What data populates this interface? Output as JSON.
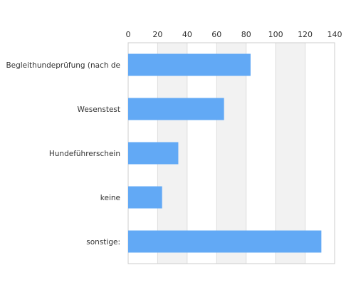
{
  "chart_data": {
    "type": "bar",
    "orientation": "horizontal",
    "categories": [
      "Begleithundeprüfung (nach de",
      "Wesenstest",
      "Hundeführerschein",
      "keine",
      "sonstige:"
    ],
    "values": [
      83,
      65,
      34,
      23,
      131
    ],
    "xlim": [
      0,
      140
    ],
    "x_ticks": [
      "0",
      "20",
      "40",
      "60",
      "80",
      "100",
      "120",
      "140"
    ],
    "x_axis_position": "top",
    "grid": "vertical bands",
    "legend": "none",
    "title": "",
    "xlabel": "",
    "ylabel": ""
  },
  "colors": {
    "bar": "#62a9f5",
    "band": "#f2f2f2",
    "gridline": "#dddddd",
    "frame": "#cccccc",
    "text": "#333333"
  }
}
